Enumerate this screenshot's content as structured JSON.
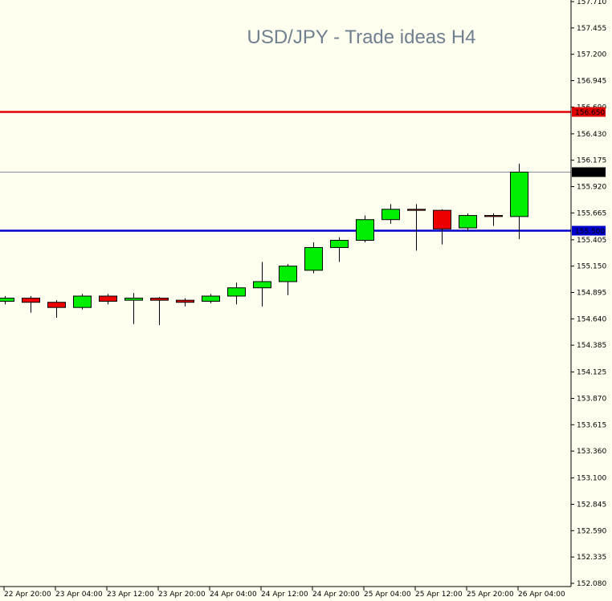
{
  "chart_data": {
    "type": "candlestick",
    "title": "USD/JPY - Trade ideas H4",
    "xlabel": "",
    "ylabel": "",
    "ylim": [
      152.08,
      157.71
    ],
    "grid": false,
    "y_ticks": [
      "157.710",
      "157.455",
      "157.200",
      "156.945",
      "156.690",
      "156.430",
      "156.175",
      "155.920",
      "155.665",
      "155.405",
      "155.150",
      "154.895",
      "154.640",
      "154.385",
      "154.125",
      "153.870",
      "153.615",
      "153.360",
      "153.100",
      "152.845",
      "152.590",
      "152.335",
      "152.080"
    ],
    "x_ticks": [
      "22 Apr 20:00",
      "23 Apr 04:00",
      "23 Apr 12:00",
      "23 Apr 20:00",
      "24 Apr 04:00",
      "24 Apr 12:00",
      "24 Apr 20:00",
      "25 Apr 04:00",
      "25 Apr 12:00",
      "25 Apr 20:00",
      "26 Apr 04:00"
    ],
    "levels": [
      {
        "value": "156.650",
        "color": "#dd0000"
      },
      {
        "value": "156.065",
        "color": "#000000"
      },
      {
        "value": "155.500",
        "color": "#0000cc"
      }
    ],
    "candles": [
      {
        "o": 154.81,
        "h": 154.86,
        "l": 154.78,
        "c": 154.84
      },
      {
        "o": 154.84,
        "h": 154.86,
        "l": 154.7,
        "c": 154.8
      },
      {
        "o": 154.8,
        "h": 154.82,
        "l": 154.65,
        "c": 154.75
      },
      {
        "o": 154.75,
        "h": 154.88,
        "l": 154.73,
        "c": 154.86
      },
      {
        "o": 154.86,
        "h": 154.88,
        "l": 154.78,
        "c": 154.81
      },
      {
        "o": 154.82,
        "h": 154.89,
        "l": 154.59,
        "c": 154.84
      },
      {
        "o": 154.84,
        "h": 154.85,
        "l": 154.58,
        "c": 154.82
      },
      {
        "o": 154.82,
        "h": 154.84,
        "l": 154.76,
        "c": 154.8
      },
      {
        "o": 154.81,
        "h": 154.88,
        "l": 154.79,
        "c": 154.86
      },
      {
        "o": 154.86,
        "h": 154.99,
        "l": 154.78,
        "c": 154.94
      },
      {
        "o": 154.94,
        "h": 155.19,
        "l": 154.76,
        "c": 155.0
      },
      {
        "o": 155.0,
        "h": 155.17,
        "l": 154.87,
        "c": 155.15
      },
      {
        "o": 155.11,
        "h": 155.38,
        "l": 155.08,
        "c": 155.33
      },
      {
        "o": 155.33,
        "h": 155.43,
        "l": 155.19,
        "c": 155.4
      },
      {
        "o": 155.4,
        "h": 155.64,
        "l": 155.38,
        "c": 155.6
      },
      {
        "o": 155.6,
        "h": 155.75,
        "l": 155.56,
        "c": 155.7
      },
      {
        "o": 155.7,
        "h": 155.75,
        "l": 155.3,
        "c": 155.69
      },
      {
        "o": 155.69,
        "h": 155.7,
        "l": 155.36,
        "c": 155.51
      },
      {
        "o": 155.52,
        "h": 155.66,
        "l": 155.49,
        "c": 155.64
      },
      {
        "o": 155.64,
        "h": 155.66,
        "l": 155.54,
        "c": 155.63
      },
      {
        "o": 155.63,
        "h": 156.14,
        "l": 155.41,
        "c": 156.06
      }
    ]
  }
}
